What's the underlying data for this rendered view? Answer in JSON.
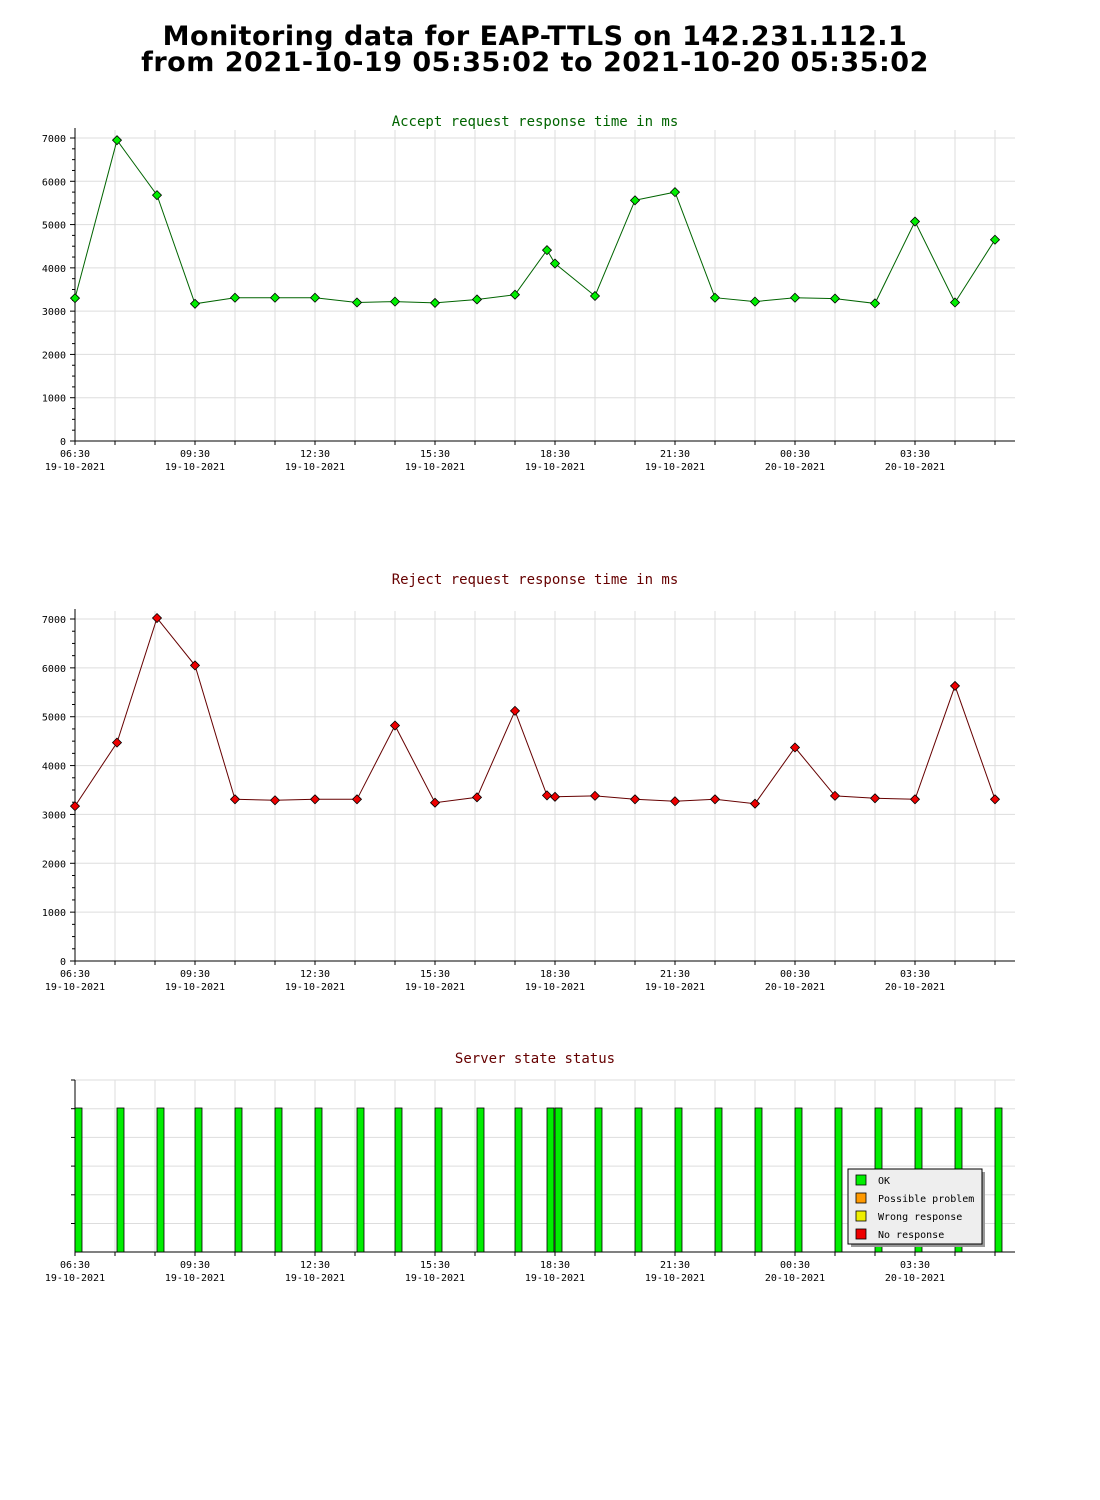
{
  "page": {
    "title_line1": "Monitoring data for EAP-TTLS on 142.231.112.1",
    "title_line2": "from 2021-10-19 05:35:02 to 2021-10-20 05:35:02"
  },
  "x_ticks": [
    {
      "time": "06:30",
      "date": "19-10-2021"
    },
    {
      "time": "09:30",
      "date": "19-10-2021"
    },
    {
      "time": "12:30",
      "date": "19-10-2021"
    },
    {
      "time": "15:30",
      "date": "19-10-2021"
    },
    {
      "time": "18:30",
      "date": "19-10-2021"
    },
    {
      "time": "21:30",
      "date": "19-10-2021"
    },
    {
      "time": "00:30",
      "date": "20-10-2021"
    },
    {
      "time": "03:30",
      "date": "20-10-2021"
    }
  ],
  "chart_data": [
    {
      "type": "line",
      "title": "Accept request response time in ms",
      "color": "#006400",
      "marker_color": "#00ee00",
      "ylim": [
        0,
        7000
      ],
      "yticks": [
        0,
        1000,
        2000,
        3000,
        4000,
        5000,
        6000,
        7000
      ],
      "xlim_hours": [
        6.5,
        30.0
      ],
      "x": [
        6.5,
        7.55,
        8.55,
        9.5,
        10.5,
        11.5,
        12.5,
        13.55,
        14.5,
        15.5,
        16.55,
        17.5,
        18.3,
        18.5,
        19.5,
        20.5,
        21.5,
        22.5,
        23.5,
        24.5,
        25.5,
        26.5,
        27.5,
        28.5,
        29.5
      ],
      "values": [
        3300,
        6950,
        5680,
        3170,
        3310,
        3310,
        3310,
        3200,
        3220,
        3190,
        3270,
        3380,
        4410,
        4100,
        3350,
        5560,
        5750,
        3310,
        3220,
        3310,
        3290,
        3180,
        5070,
        3200,
        4650
      ]
    },
    {
      "type": "line",
      "title": "Reject request response time in ms",
      "color": "#660000",
      "marker_color": "#ee0000",
      "ylim": [
        0,
        7000
      ],
      "yticks": [
        0,
        1000,
        2000,
        3000,
        4000,
        5000,
        6000,
        7000
      ],
      "xlim_hours": [
        6.5,
        30.0
      ],
      "x": [
        6.5,
        7.55,
        8.55,
        9.5,
        10.5,
        11.5,
        12.5,
        13.55,
        14.5,
        15.5,
        16.55,
        17.5,
        18.3,
        18.5,
        19.5,
        20.5,
        21.5,
        22.5,
        23.5,
        24.5,
        25.5,
        26.5,
        27.5,
        28.5,
        29.5
      ],
      "values": [
        3170,
        4470,
        7020,
        6050,
        3310,
        3290,
        3310,
        3310,
        4820,
        3240,
        3350,
        5120,
        3390,
        3360,
        3380,
        3310,
        3270,
        3310,
        3220,
        4370,
        3380,
        3330,
        3310,
        5630,
        3310
      ]
    },
    {
      "type": "bar",
      "title": "Server state status",
      "title_color": "#660000",
      "xlim_hours": [
        6.5,
        30.0
      ],
      "x": [
        6.5,
        7.55,
        8.55,
        9.5,
        10.5,
        11.5,
        12.5,
        13.55,
        14.5,
        15.5,
        16.55,
        17.5,
        18.3,
        18.5,
        19.5,
        20.5,
        21.5,
        22.5,
        23.5,
        24.5,
        25.5,
        26.5,
        27.5,
        28.5,
        29.5
      ],
      "states": [
        "OK",
        "OK",
        "OK",
        "OK",
        "OK",
        "OK",
        "OK",
        "OK",
        "OK",
        "OK",
        "OK",
        "OK",
        "OK",
        "OK",
        "OK",
        "OK",
        "OK",
        "OK",
        "OK",
        "OK",
        "OK",
        "OK",
        "OK",
        "OK",
        "OK"
      ],
      "legend": [
        {
          "label": "OK",
          "color": "#00ee00"
        },
        {
          "label": "Possible problem",
          "color": "#ff9900"
        },
        {
          "label": "Wrong response",
          "color": "#eeee00"
        },
        {
          "label": "No response",
          "color": "#ee0000"
        }
      ]
    }
  ]
}
